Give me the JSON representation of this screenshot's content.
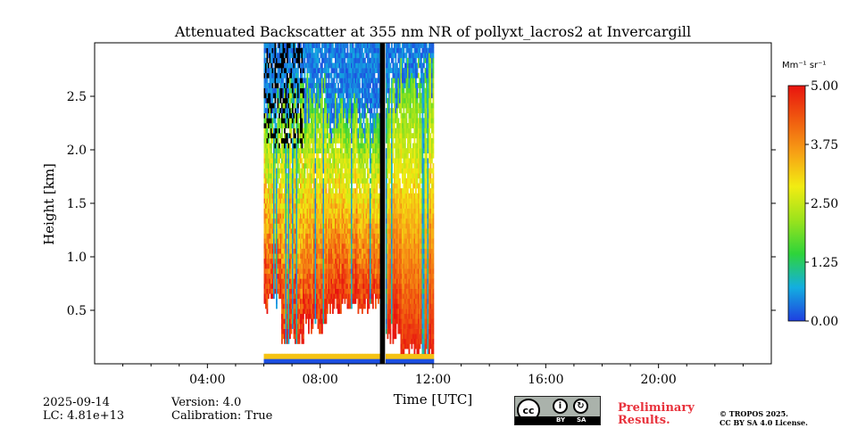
{
  "chart_data": {
    "type": "heatmap",
    "title": "Attenuated Backscatter at 355 nm NR of pollyxt_lacros2 at Invercargill",
    "xlabel": "Time [UTC]",
    "ylabel": "Height [km]",
    "x_unit": "hours UTC",
    "xlim": [
      0,
      24
    ],
    "ylim": [
      0,
      3.0
    ],
    "x_ticks": [
      {
        "value": 4,
        "label": "04:00"
      },
      {
        "value": 8,
        "label": "08:00"
      },
      {
        "value": 12,
        "label": "12:00"
      },
      {
        "value": 16,
        "label": "16:00"
      },
      {
        "value": 20,
        "label": "20:00"
      }
    ],
    "y_ticks": [
      {
        "value": 0.5,
        "label": "0.5"
      },
      {
        "value": 1.0,
        "label": "1.0"
      },
      {
        "value": 1.5,
        "label": "1.5"
      },
      {
        "value": 2.0,
        "label": "2.0"
      },
      {
        "value": 2.5,
        "label": "2.5"
      }
    ],
    "colorbar": {
      "unit_label": "Mm⁻¹ sr⁻¹",
      "min": 0.0,
      "max": 5.0,
      "ticks": [
        {
          "value": 0.0,
          "label": "0.00"
        },
        {
          "value": 1.25,
          "label": "1.25"
        },
        {
          "value": 2.5,
          "label": "2.50"
        },
        {
          "value": 3.75,
          "label": "3.75"
        },
        {
          "value": 5.0,
          "label": "5.00"
        }
      ],
      "colormap": [
        "#1f3fe0",
        "#13aee0",
        "#2ed43a",
        "#9be31c",
        "#f2ec12",
        "#f7a115",
        "#f05a0f",
        "#e8140f"
      ]
    },
    "measurement_window_hours": [
      6.0,
      12.0
    ],
    "data_gaps_hours": [
      [
        10.12,
        10.3
      ]
    ],
    "segments": [
      {
        "t0": 6.0,
        "t1": 6.6,
        "cloud_base_km": 0.55,
        "upper_blue_km": 2.35,
        "upper_green_km": 0.4,
        "noise": "high"
      },
      {
        "t0": 6.6,
        "t1": 7.4,
        "cloud_base_km": 0.25,
        "upper_blue_km": 2.55,
        "upper_green_km": 0.45,
        "noise": "high"
      },
      {
        "t0": 7.4,
        "t1": 8.2,
        "cloud_base_km": 0.35,
        "upper_blue_km": 2.45,
        "upper_green_km": 0.4,
        "noise": "medium"
      },
      {
        "t0": 8.2,
        "t1": 9.0,
        "cloud_base_km": 0.55,
        "upper_blue_km": 2.3,
        "upper_green_km": 0.55,
        "noise": "medium"
      },
      {
        "t0": 9.0,
        "t1": 10.12,
        "cloud_base_km": 0.55,
        "upper_blue_km": 2.3,
        "upper_green_km": 0.65,
        "noise": "medium"
      },
      {
        "t0": 10.3,
        "t1": 10.8,
        "cloud_base_km": 0.3,
        "upper_blue_km": 2.55,
        "upper_green_km": 0.7,
        "noise": "low"
      },
      {
        "t0": 10.8,
        "t1": 12.0,
        "cloud_base_km": 0.1,
        "upper_blue_km": 2.7,
        "upper_green_km": 0.75,
        "noise": "low"
      }
    ],
    "surface_layer_km": [
      0.0,
      0.09
    ]
  },
  "footer": {
    "date": "2025-09-14",
    "lc": "LC: 4.81e+13",
    "version": "Version: 4.0",
    "calibration": "Calibration: True",
    "license_badge": {
      "cc": "cc",
      "by": "BY",
      "sa": "SA"
    },
    "preliminary_line1": "Preliminary",
    "preliminary_line2": "Results.",
    "copyright_line1": "© TROPOS 2025.",
    "copyright_line2": "CC BY SA 4.0 License."
  }
}
